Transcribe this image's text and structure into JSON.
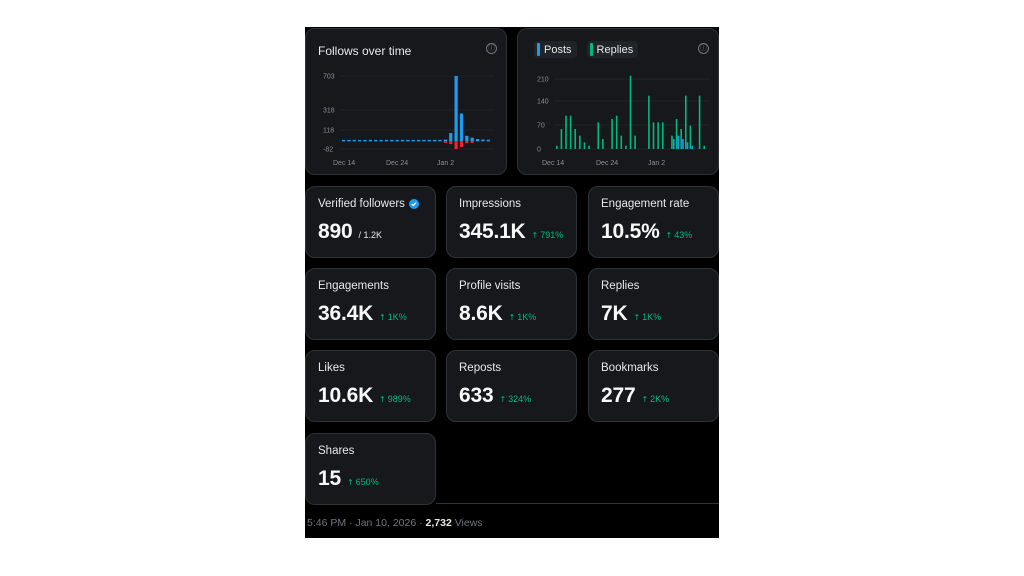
{
  "follows_chart": {
    "title": "Follows over time",
    "info_icon": "ⓘ",
    "y_ticks": [
      "703",
      "318",
      "118",
      "-82"
    ],
    "x_ticks": [
      "Dec 14",
      "Dec 24",
      "Jan 2"
    ],
    "colors": {
      "gains": "#1d9bf0",
      "losses": "#f4212e"
    },
    "gains": [
      10,
      8,
      9,
      7,
      6,
      5,
      6,
      7,
      5,
      6,
      8,
      7,
      9,
      8,
      10,
      12,
      9,
      11,
      14,
      20,
      90,
      703,
      300,
      60,
      40,
      25,
      20,
      18
    ],
    "losses": [
      0,
      0,
      0,
      0,
      0,
      0,
      0,
      0,
      0,
      0,
      0,
      0,
      0,
      0,
      0,
      0,
      0,
      0,
      0,
      -10,
      -30,
      -82,
      -60,
      -20,
      -5,
      0,
      0,
      0
    ]
  },
  "posts_replies_chart": {
    "info_icon": "ⓘ",
    "legend": [
      {
        "label": "Posts",
        "color": "#1d9bf0"
      },
      {
        "label": "Replies",
        "color": "#00ba7c"
      }
    ],
    "y_ticks": [
      "210",
      "140",
      "70",
      "0"
    ],
    "x_ticks": [
      "Dec 14",
      "Dec 24",
      "Jan 2"
    ],
    "replies": [
      10,
      60,
      100,
      100,
      60,
      40,
      20,
      10,
      0,
      80,
      30,
      0,
      90,
      100,
      40,
      10,
      220,
      40,
      0,
      0,
      160,
      80,
      80,
      80,
      0,
      40,
      90,
      60,
      160,
      70,
      0,
      160,
      10
    ],
    "posts": [
      0,
      0,
      0,
      0,
      0,
      0,
      0,
      0,
      0,
      0,
      0,
      0,
      0,
      0,
      0,
      0,
      0,
      0,
      0,
      0,
      0,
      0,
      0,
      0,
      0,
      30,
      40,
      30,
      20,
      10,
      0,
      0,
      0
    ]
  },
  "stats": [
    {
      "label": "Verified followers",
      "value": "890",
      "sub": "/ 1.2K",
      "verified": true
    },
    {
      "label": "Impressions",
      "value": "345.1K",
      "change": "791%"
    },
    {
      "label": "Engagement rate",
      "value": "10.5%",
      "change": "43%"
    },
    {
      "label": "Engagements",
      "value": "36.4K",
      "change": "1K%"
    },
    {
      "label": "Profile visits",
      "value": "8.6K",
      "change": "1K%"
    },
    {
      "label": "Replies",
      "value": "7K",
      "change": "1K%"
    },
    {
      "label": "Likes",
      "value": "10.6K",
      "change": "989%"
    },
    {
      "label": "Reposts",
      "value": "633",
      "change": "324%"
    },
    {
      "label": "Bookmarks",
      "value": "277",
      "change": "2K%"
    },
    {
      "label": "Shares",
      "value": "15",
      "change": "650%"
    }
  ],
  "footer": {
    "time": "5:46 PM",
    "separator1": " · ",
    "date": "Jan 10, 2026",
    "separator2": " · ",
    "views_count": "2,732",
    "views_label": " Views"
  }
}
